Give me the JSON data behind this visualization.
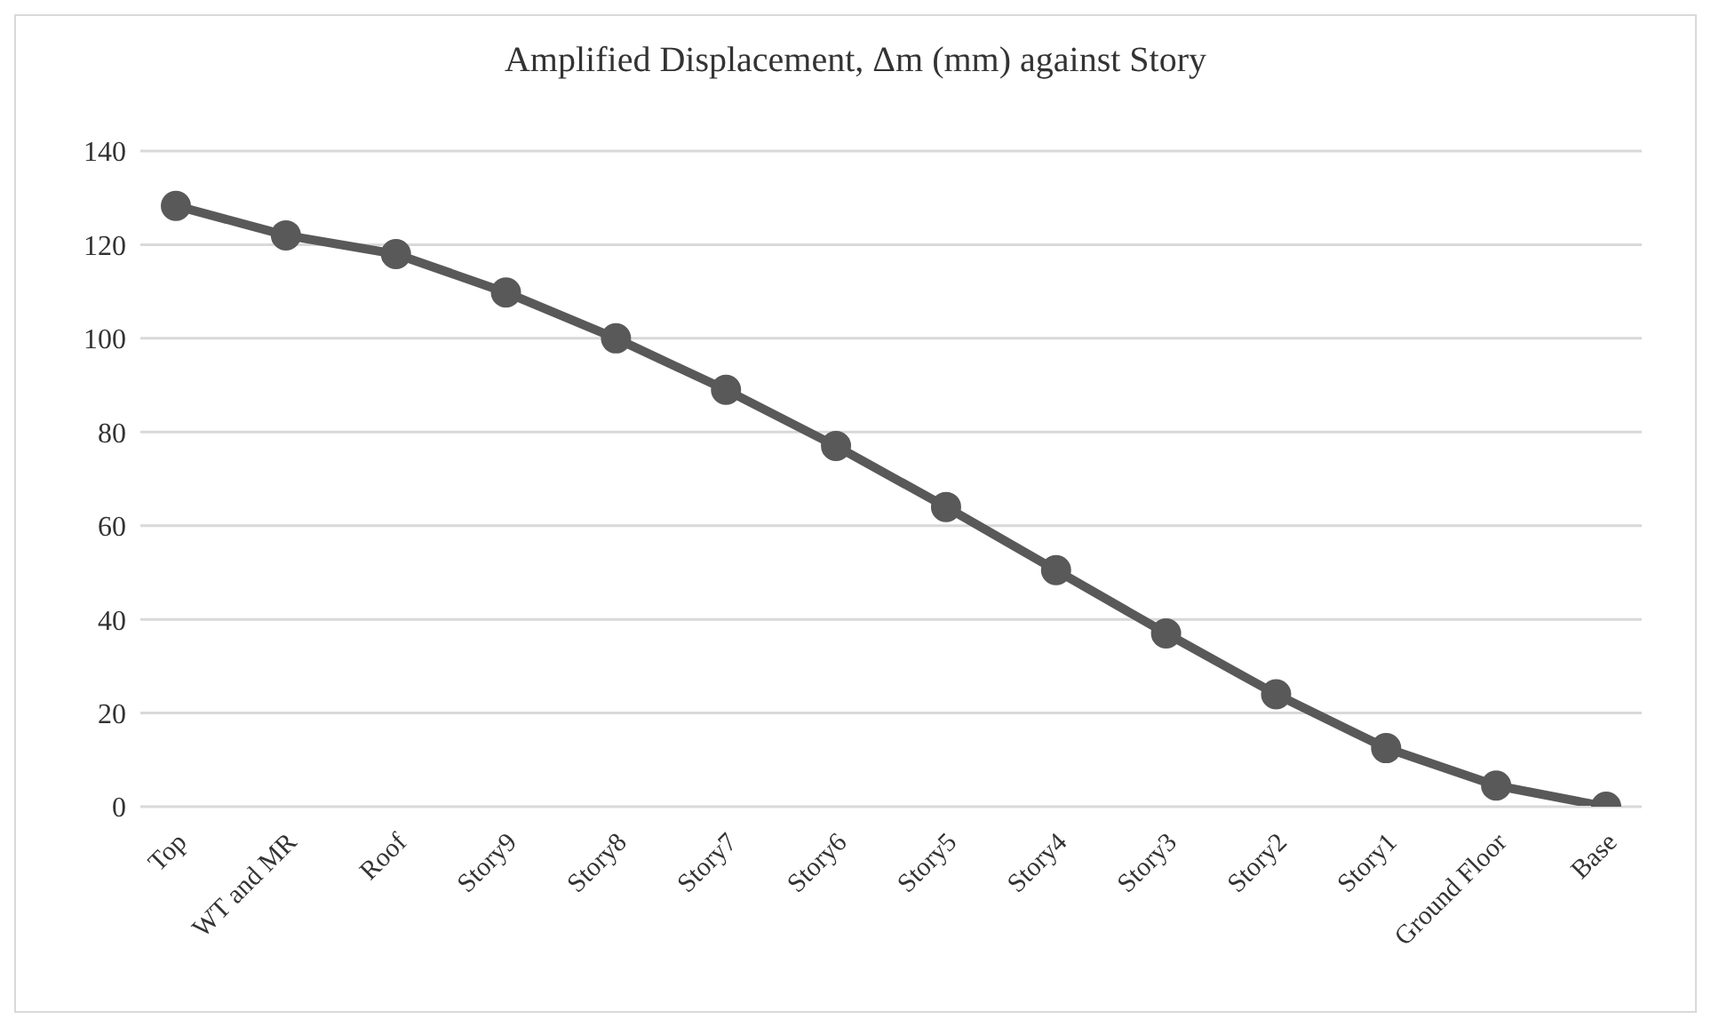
{
  "chart_data": {
    "type": "line",
    "title": "Amplified Displacement, Δm (mm) against Story",
    "categories": [
      "Top",
      "WT and MR",
      "Roof",
      "Story9",
      "Story8",
      "Story7",
      "Story6",
      "Story5",
      "Story4",
      "Story3",
      "Story2",
      "Story1",
      "Ground Floor",
      "Base"
    ],
    "series": [
      {
        "color": "#595959",
        "values": [
          128.3,
          122,
          118,
          109.8,
          100,
          89,
          77,
          64,
          50.5,
          37,
          24,
          12.5,
          4.5,
          0
        ]
      }
    ],
    "ylim": [
      0,
      140
    ],
    "yticks": [
      0,
      20,
      40,
      60,
      80,
      100,
      120,
      140
    ],
    "grid": "y",
    "marker": "circle",
    "line_style": "solid"
  }
}
